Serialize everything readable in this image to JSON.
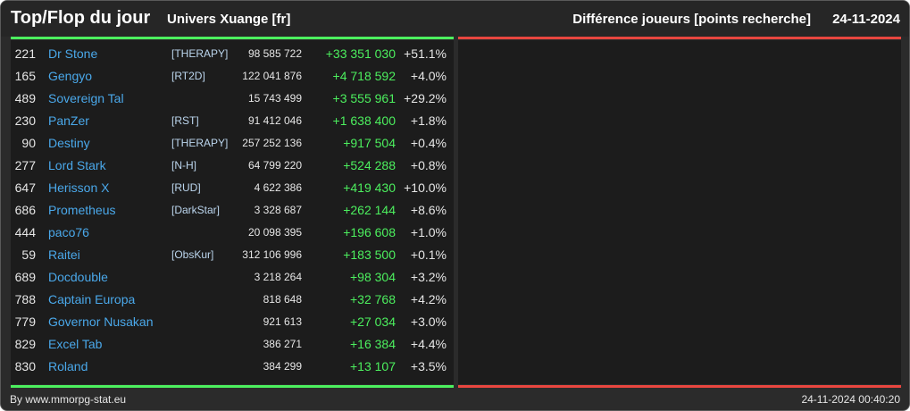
{
  "header": {
    "title": "Top/Flop du jour",
    "subtitle": "Univers Xuange [fr]",
    "metric": "Différence joueurs [points recherche]",
    "date": "24-11-2024"
  },
  "colors": {
    "positive": "#4cef5e",
    "negative": "#e8463f",
    "name": "#4aa8ea"
  },
  "rows": [
    {
      "rank": "221",
      "name": "Dr Stone",
      "tag": "[THERAPY]",
      "total": "98 585 722",
      "diff": "+33 351 030",
      "pct": "+51.1%"
    },
    {
      "rank": "165",
      "name": "Gengyo",
      "tag": "[RT2D]",
      "total": "122 041 876",
      "diff": "+4 718 592",
      "pct": "+4.0%"
    },
    {
      "rank": "489",
      "name": "Sovereign Tal",
      "tag": "",
      "total": "15 743 499",
      "diff": "+3 555 961",
      "pct": "+29.2%"
    },
    {
      "rank": "230",
      "name": "PanZer",
      "tag": "[RST]",
      "total": "91 412 046",
      "diff": "+1 638 400",
      "pct": "+1.8%"
    },
    {
      "rank": "90",
      "name": "Destiny",
      "tag": "[THERAPY]",
      "total": "257 252 136",
      "diff": "+917 504",
      "pct": "+0.4%"
    },
    {
      "rank": "277",
      "name": "Lord Stark",
      "tag": "[N-H]",
      "total": "64 799 220",
      "diff": "+524 288",
      "pct": "+0.8%"
    },
    {
      "rank": "647",
      "name": "Herisson X",
      "tag": "[RUD]",
      "total": "4 622 386",
      "diff": "+419 430",
      "pct": "+10.0%"
    },
    {
      "rank": "686",
      "name": "Prometheus",
      "tag": "[DarkStar]",
      "total": "3 328 687",
      "diff": "+262 144",
      "pct": "+8.6%"
    },
    {
      "rank": "444",
      "name": "paco76",
      "tag": "",
      "total": "20 098 395",
      "diff": "+196 608",
      "pct": "+1.0%"
    },
    {
      "rank": "59",
      "name": "Raitei",
      "tag": "[ObsKur]",
      "total": "312 106 996",
      "diff": "+183 500",
      "pct": "+0.1%"
    },
    {
      "rank": "689",
      "name": "Docdouble",
      "tag": "",
      "total": "3 218 264",
      "diff": "+98 304",
      "pct": "+3.2%"
    },
    {
      "rank": "788",
      "name": "Captain Europa",
      "tag": "",
      "total": "818 648",
      "diff": "+32 768",
      "pct": "+4.2%"
    },
    {
      "rank": "779",
      "name": "Governor Nusakan",
      "tag": "",
      "total": "921 613",
      "diff": "+27 034",
      "pct": "+3.0%"
    },
    {
      "rank": "829",
      "name": "Excel Tab",
      "tag": "",
      "total": "386 271",
      "diff": "+16 384",
      "pct": "+4.4%"
    },
    {
      "rank": "830",
      "name": "Roland",
      "tag": "",
      "total": "384 299",
      "diff": "+13 107",
      "pct": "+3.5%"
    }
  ],
  "footer": {
    "credit": "By www.mmorpg-stat.eu",
    "timestamp": "24-11-2024 00:40:20"
  }
}
